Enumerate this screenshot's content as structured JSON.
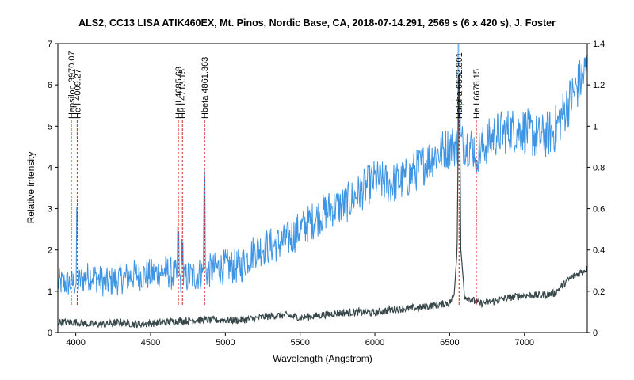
{
  "chart_data": {
    "type": "line",
    "title": "ALS2, CC13 LISA ATIK460EX, Mt. Pinos, Nordic Base, CA,  2018-07-14.291, 2569 s (6 x 420 s),  J. Foster",
    "xlabel": "Wavelength (Angstrom)",
    "ylabel": "Relative intensity",
    "xlim": [
      3880,
      7420
    ],
    "ylim_left": [
      0,
      7
    ],
    "ylim_right": [
      0,
      1.4
    ],
    "x_ticks": [
      4000,
      4500,
      5000,
      5500,
      6000,
      6500,
      7000
    ],
    "y_ticks_left": [
      0,
      1,
      2,
      3,
      4,
      5,
      6,
      7
    ],
    "y_ticks_right": [
      "0",
      "0.2",
      "0.4",
      "0.6",
      "0.8",
      "1",
      "1.2",
      "1.4"
    ],
    "grid": false,
    "legend": "none",
    "colors": {
      "series_blue": "#3d94e3",
      "series_dark": "#37474a",
      "marker": "#d62020"
    },
    "series": [
      {
        "axis": "right",
        "x": [
          3880,
          4000,
          4100,
          4200,
          4300,
          4400,
          4500,
          4600,
          4700,
          4800,
          4900,
          5000,
          5100,
          5200,
          5300,
          5400,
          5500,
          5600,
          5700,
          5800,
          5900,
          6000,
          6100,
          6200,
          6300,
          6400,
          6500,
          6600,
          6700,
          6800,
          6900,
          7000,
          7100,
          7200,
          7300,
          7420
        ],
        "y": [
          0.24,
          0.24,
          0.28,
          0.24,
          0.26,
          0.28,
          0.28,
          0.3,
          0.26,
          0.28,
          0.3,
          0.32,
          0.32,
          0.4,
          0.42,
          0.44,
          0.5,
          0.55,
          0.6,
          0.62,
          0.68,
          0.74,
          0.72,
          0.74,
          0.8,
          0.86,
          0.9,
          0.92,
          0.88,
          0.96,
          0.98,
          0.98,
          0.94,
          0.98,
          1.12,
          1.28
        ]
      },
      {
        "axis": "left",
        "x": [
          3880,
          4000,
          4100,
          4200,
          4300,
          4400,
          4500,
          4600,
          4700,
          4800,
          4900,
          5000,
          5100,
          5200,
          5300,
          5400,
          5500,
          5600,
          5700,
          5800,
          5900,
          6000,
          6100,
          6200,
          6300,
          6400,
          6500,
          6530,
          6550,
          6563,
          6575,
          6600,
          6700,
          6800,
          6900,
          7000,
          7100,
          7200,
          7300,
          7420
        ],
        "y": [
          0.25,
          0.25,
          0.2,
          0.2,
          0.25,
          0.2,
          0.22,
          0.25,
          0.28,
          0.3,
          0.3,
          0.3,
          0.3,
          0.34,
          0.4,
          0.42,
          0.36,
          0.4,
          0.45,
          0.48,
          0.5,
          0.48,
          0.55,
          0.58,
          0.6,
          0.66,
          0.72,
          0.9,
          2.0,
          6.9,
          2.0,
          0.88,
          0.7,
          0.76,
          0.85,
          0.9,
          0.9,
          0.95,
          1.3,
          1.55
        ]
      }
    ],
    "markers": [
      {
        "label": "Hepsilon 3970.07",
        "x": 3970.07
      },
      {
        "label": "He I 4009.27",
        "x": 4009.27
      },
      {
        "label": "He II 4685.68",
        "x": 4685.68
      },
      {
        "label": "He I 4713.15",
        "x": 4713.15
      },
      {
        "label": "Hbeta 4861.363",
        "x": 4861.363
      },
      {
        "label": "Halpha 6562.801",
        "x": 6562.801
      },
      {
        "label": "He I 6678.15",
        "x": 6678.15
      }
    ]
  }
}
